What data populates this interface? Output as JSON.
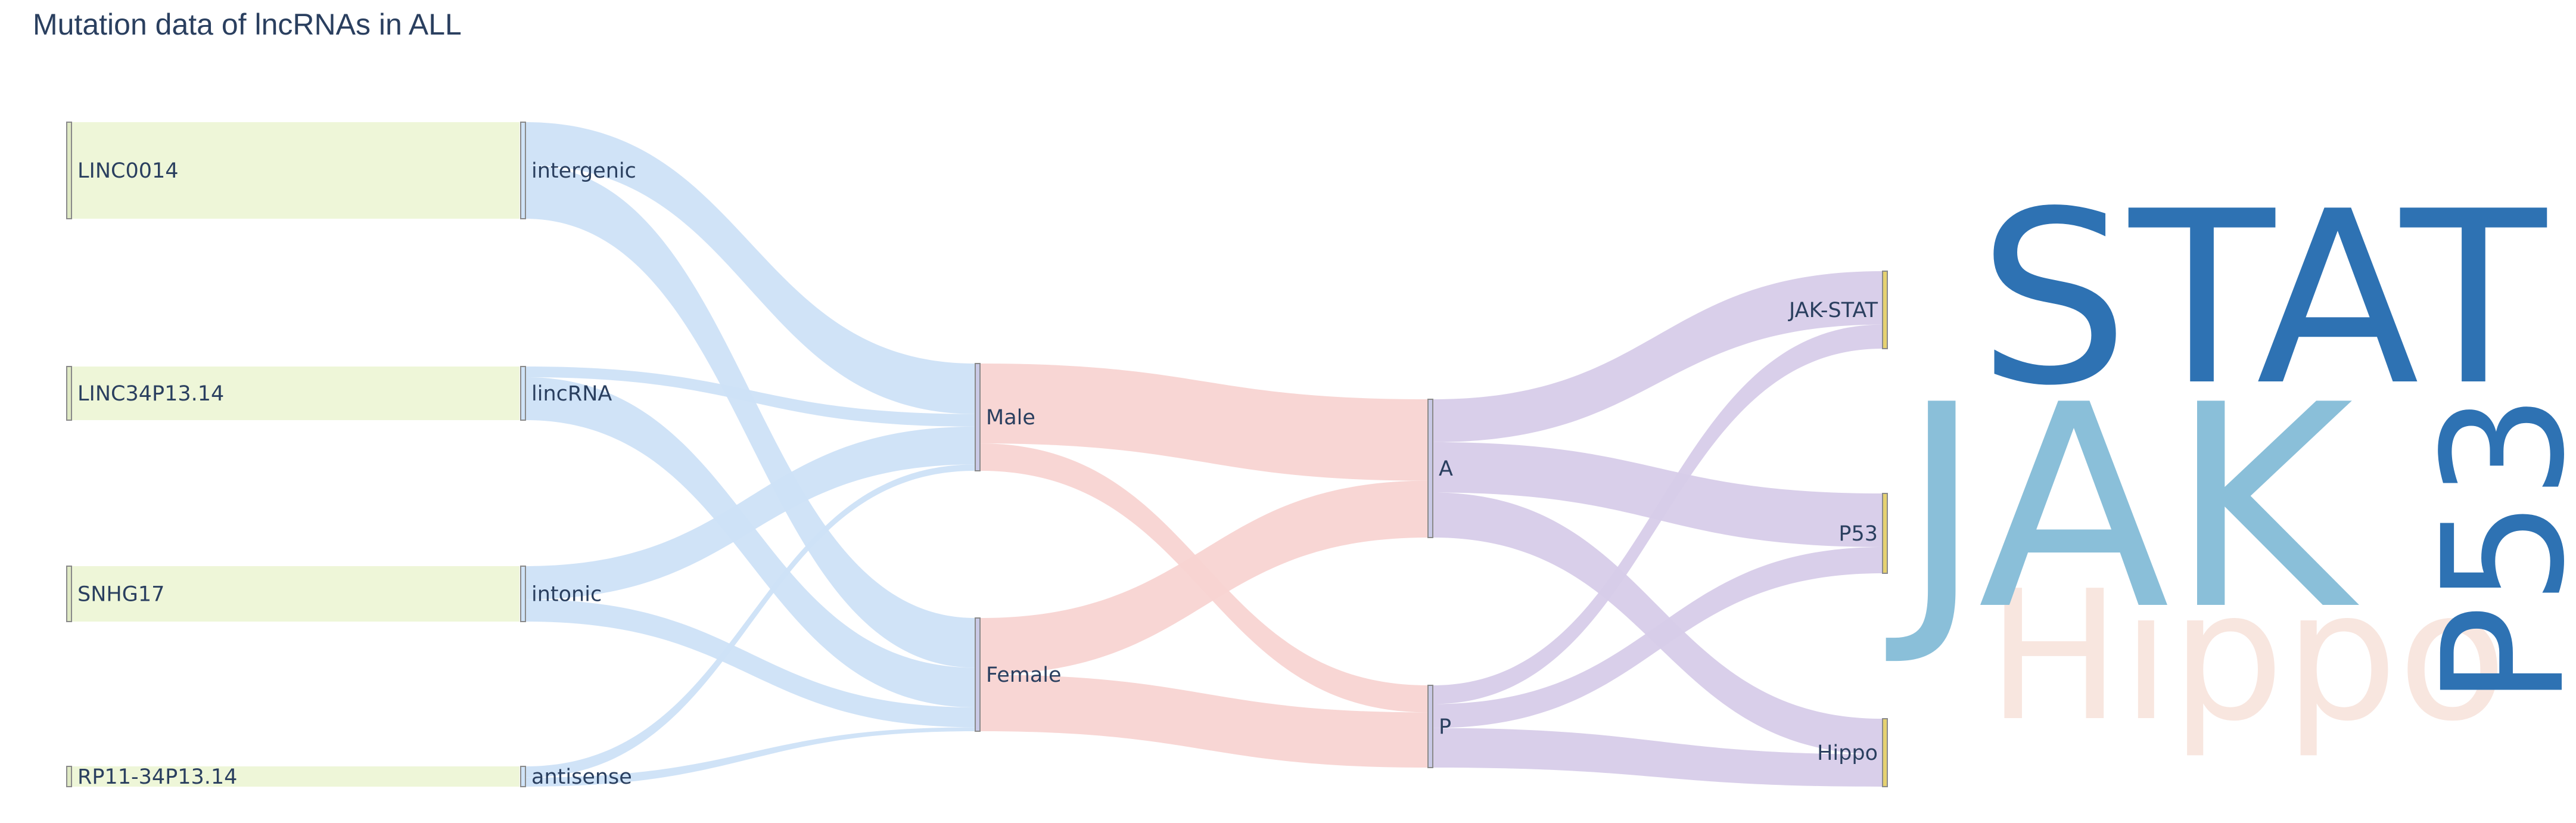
{
  "title": "Mutation data of lncRNAs in ALL",
  "nodes": [
    {
      "id": "LINC0014",
      "label": "LINC0014",
      "color": "#eef6d8"
    },
    {
      "id": "LINC34P13.14",
      "label": "LINC34P13.14",
      "color": "#eef6d8"
    },
    {
      "id": "SNHG17",
      "label": "SNHG17",
      "color": "#eef6d8"
    },
    {
      "id": "RP11-34P13.14",
      "label": "RP11-34P13.14",
      "color": "#eef6d8"
    },
    {
      "id": "intergenic",
      "label": "intergenic",
      "color": "#cfe3f7"
    },
    {
      "id": "lincRNA",
      "label": "lincRNA",
      "color": "#cfe3f7"
    },
    {
      "id": "intonic",
      "label": "intonic",
      "color": "#cfe3f7"
    },
    {
      "id": "antisense",
      "label": "antisense",
      "color": "#cfe3f7"
    },
    {
      "id": "Male",
      "label": "Male",
      "color": "#c9c9e6"
    },
    {
      "id": "Female",
      "label": "Female",
      "color": "#c9c9e6"
    },
    {
      "id": "A",
      "label": "A",
      "color": "#c9c9e6"
    },
    {
      "id": "P",
      "label": "P",
      "color": "#c9c9e6"
    },
    {
      "id": "JAK-STAT",
      "label": "JAK-STAT",
      "color": "#e6d170"
    },
    {
      "id": "P53",
      "label": "P53",
      "color": "#e6d170"
    },
    {
      "id": "Hippo",
      "label": "Hippo",
      "color": "#e6d170"
    }
  ],
  "links": [
    {
      "source": "intergenic",
      "target": "Male",
      "value": 4,
      "color": "#cde2f7"
    },
    {
      "source": "intergenic",
      "target": "Female",
      "value": 5,
      "color": "#cde2f7"
    },
    {
      "source": "lincRNA",
      "target": "Male",
      "value": 1,
      "color": "#cde2f7"
    },
    {
      "source": "lincRNA",
      "target": "Female",
      "value": 4,
      "color": "#cde2f7"
    },
    {
      "source": "intonic",
      "target": "Male",
      "value": 3,
      "color": "#cde2f7"
    },
    {
      "source": "intonic",
      "target": "Female",
      "value": 2,
      "color": "#cde2f7"
    },
    {
      "source": "antisense",
      "target": "Male",
      "value": 0.5,
      "color": "#cde2f7"
    },
    {
      "source": "antisense",
      "target": "Female",
      "value": 0.4,
      "color": "#cde2f7"
    },
    {
      "source": "Male",
      "target": "A",
      "value": 7.6,
      "color": "#f8d4d2"
    },
    {
      "source": "Male",
      "target": "P",
      "value": 2.6,
      "color": "#f8d4d2"
    },
    {
      "source": "Female",
      "target": "A",
      "value": 5.3,
      "color": "#f8d4d2"
    },
    {
      "source": "Female",
      "target": "P",
      "value": 5.3,
      "color": "#f8d4d2"
    },
    {
      "source": "A",
      "target": "JAK-STAT",
      "value": 4,
      "color": "#d7cce9"
    },
    {
      "source": "A",
      "target": "P53",
      "value": 4.7,
      "color": "#d7cce9"
    },
    {
      "source": "A",
      "target": "Hippo",
      "value": 4.2,
      "color": "#d7cce9"
    },
    {
      "source": "P",
      "target": "JAK-STAT",
      "value": 1.8,
      "color": "#d7cce9"
    },
    {
      "source": "P",
      "target": "P53",
      "value": 2.3,
      "color": "#d7cce9"
    },
    {
      "source": "P",
      "target": "Hippo",
      "value": 3.8,
      "color": "#d7cce9"
    }
  ],
  "wordcloud": [
    {
      "text": "STAT",
      "color": "#2e72b3"
    },
    {
      "text": "JAK",
      "color": "#8abfd9"
    },
    {
      "text": "P53",
      "color": "#2e72b3"
    },
    {
      "text": "Hippo",
      "color": "#f8e6df"
    }
  ]
}
